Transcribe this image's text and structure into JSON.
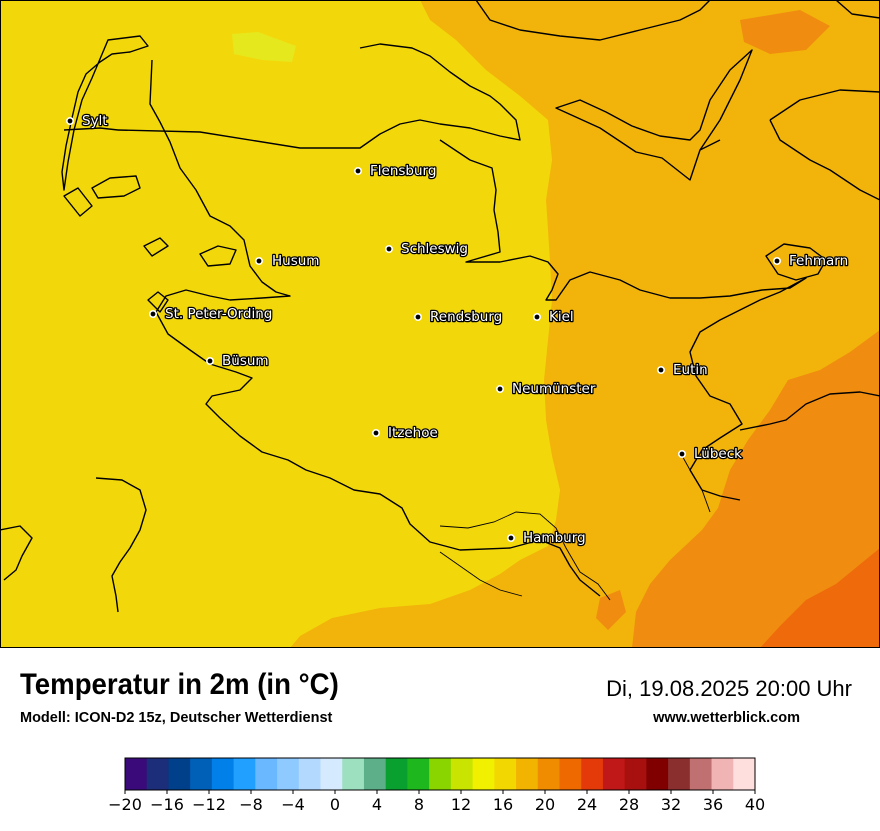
{
  "title": "Temperatur in 2m (in °C)",
  "model": "Modell: ICON-D2 15z, Deutscher Wetterdienst",
  "datetime": "Di, 19.08.2025 20:00 Uhr",
  "website": "www.wetterblick.com",
  "cities": [
    {
      "name": "Sylt"
    },
    {
      "name": "Flensburg"
    },
    {
      "name": "Schleswig"
    },
    {
      "name": "Husum"
    },
    {
      "name": "Fehmarn"
    },
    {
      "name": "St. Peter-Ording"
    },
    {
      "name": "Rendsburg"
    },
    {
      "name": "Kiel"
    },
    {
      "name": "Büsum"
    },
    {
      "name": "Eutin"
    },
    {
      "name": "Neumünster"
    },
    {
      "name": "Itzehoe"
    },
    {
      "name": "Lübeck"
    },
    {
      "name": "Hamburg"
    }
  ],
  "legend": {
    "tick_labels": [
      "−20",
      "−16",
      "−12",
      "−8",
      "−4",
      "0",
      "4",
      "8",
      "12",
      "16",
      "20",
      "24",
      "28",
      "32",
      "36",
      "40"
    ],
    "colors": [
      "#3a0a7a",
      "#1c2d7a",
      "#003f8a",
      "#0060b8",
      "#0080e8",
      "#22a0ff",
      "#6ab8ff",
      "#8ec9ff",
      "#b4d9ff",
      "#d6eaff",
      "#9de0c0",
      "#5caf88",
      "#0aa030",
      "#1eb81e",
      "#8ad400",
      "#c8e400",
      "#f0f000",
      "#f2d800",
      "#f2b400",
      "#f08c00",
      "#ee6a00",
      "#e43a0a",
      "#c01818",
      "#a81010",
      "#800000",
      "#8a2e2e",
      "#c07070",
      "#f0b4b4",
      "#ffdede"
    ]
  },
  "field_colors": {
    "t18": "#f2d80a",
    "t20": "#f2b40a",
    "t22": "#f08c10",
    "t24": "#ee6a0a",
    "t16": "#e6e81e"
  }
}
